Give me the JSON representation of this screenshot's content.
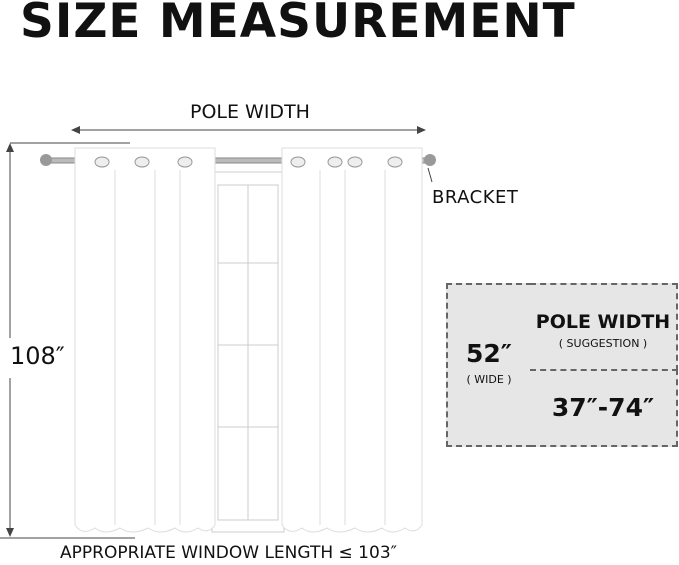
{
  "title": "SIZE MEASUREMENT",
  "labels": {
    "pole_width": "POLE WIDTH",
    "bracket": "BRACKET",
    "height": "108″",
    "window_length": "APPROPRIATE WINDOW LENGTH ≤ 103″"
  },
  "size_table": {
    "width_value": "52″",
    "width_note": "( WIDE )",
    "pole_heading": "POLE WIDTH",
    "pole_note": "( SUGGESTION )",
    "pole_range": "37″-74″"
  },
  "colors": {
    "table_bg": "#e6e6e6",
    "text": "#111111"
  }
}
